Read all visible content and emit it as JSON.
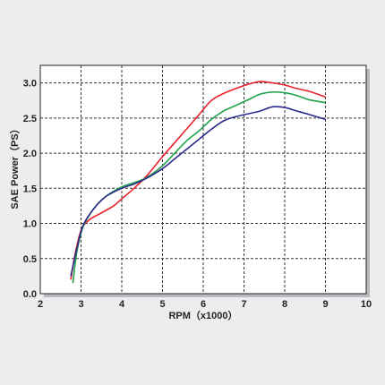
{
  "chart_data": {
    "type": "line",
    "xlabel": "RPM（x1000）",
    "ylabel": "SAE Power（PS）",
    "xlim": [
      2,
      10
    ],
    "ylim": [
      0,
      3.25
    ],
    "x_ticks": [
      "2",
      "3",
      "4",
      "5",
      "6",
      "7",
      "8",
      "9",
      "10"
    ],
    "y_ticks": [
      "0.0",
      "0.5",
      "1.0",
      "1.5",
      "2.0",
      "2.5",
      "3.0"
    ],
    "grid": true,
    "series": [
      {
        "color": "#e8232b",
        "points": [
          [
            2.75,
            0.2
          ],
          [
            2.85,
            0.55
          ],
          [
            3.0,
            0.9
          ],
          [
            3.2,
            1.05
          ],
          [
            3.5,
            1.15
          ],
          [
            3.8,
            1.25
          ],
          [
            4.0,
            1.35
          ],
          [
            4.3,
            1.5
          ],
          [
            4.6,
            1.67
          ],
          [
            5.0,
            1.95
          ],
          [
            5.3,
            2.15
          ],
          [
            5.6,
            2.35
          ],
          [
            5.9,
            2.55
          ],
          [
            6.2,
            2.75
          ],
          [
            6.5,
            2.85
          ],
          [
            6.8,
            2.92
          ],
          [
            7.1,
            2.98
          ],
          [
            7.4,
            3.02
          ],
          [
            7.7,
            3.0
          ],
          [
            8.0,
            2.97
          ],
          [
            8.3,
            2.92
          ],
          [
            8.6,
            2.88
          ],
          [
            9.0,
            2.8
          ]
        ]
      },
      {
        "color": "#1fa24a",
        "points": [
          [
            2.8,
            0.15
          ],
          [
            2.9,
            0.6
          ],
          [
            3.05,
            0.95
          ],
          [
            3.3,
            1.2
          ],
          [
            3.6,
            1.38
          ],
          [
            4.0,
            1.52
          ],
          [
            4.3,
            1.58
          ],
          [
            4.6,
            1.65
          ],
          [
            5.0,
            1.82
          ],
          [
            5.3,
            2.0
          ],
          [
            5.6,
            2.18
          ],
          [
            5.9,
            2.32
          ],
          [
            6.2,
            2.48
          ],
          [
            6.5,
            2.6
          ],
          [
            6.8,
            2.68
          ],
          [
            7.1,
            2.76
          ],
          [
            7.4,
            2.84
          ],
          [
            7.7,
            2.87
          ],
          [
            8.0,
            2.86
          ],
          [
            8.3,
            2.82
          ],
          [
            8.6,
            2.76
          ],
          [
            9.0,
            2.72
          ]
        ]
      },
      {
        "color": "#2b2a8c",
        "points": [
          [
            2.75,
            0.25
          ],
          [
            2.9,
            0.65
          ],
          [
            3.05,
            0.97
          ],
          [
            3.3,
            1.2
          ],
          [
            3.6,
            1.38
          ],
          [
            4.0,
            1.5
          ],
          [
            4.3,
            1.56
          ],
          [
            4.6,
            1.64
          ],
          [
            5.0,
            1.78
          ],
          [
            5.3,
            1.92
          ],
          [
            5.6,
            2.06
          ],
          [
            5.9,
            2.2
          ],
          [
            6.2,
            2.34
          ],
          [
            6.5,
            2.46
          ],
          [
            6.8,
            2.52
          ],
          [
            7.1,
            2.56
          ],
          [
            7.4,
            2.6
          ],
          [
            7.7,
            2.66
          ],
          [
            8.0,
            2.65
          ],
          [
            8.3,
            2.6
          ],
          [
            8.6,
            2.55
          ],
          [
            9.0,
            2.48
          ]
        ]
      }
    ]
  }
}
